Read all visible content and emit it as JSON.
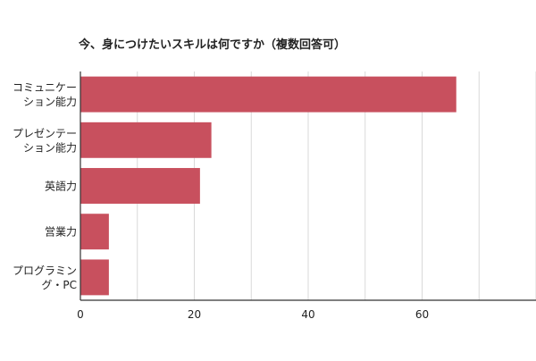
{
  "chart_data": {
    "type": "bar",
    "orientation": "horizontal",
    "title": "今、身につけたいスキルは何ですか（複数回答可）",
    "categories": [
      [
        "コミュニケー",
        "ション能力"
      ],
      [
        "プレゼンテー",
        "ション能力"
      ],
      [
        "英語力"
      ],
      [
        "営業力"
      ],
      [
        "プログラミン",
        "グ・PC"
      ]
    ],
    "values": [
      66,
      23,
      21,
      5,
      5
    ],
    "xlim": [
      0,
      80
    ],
    "xticks": [
      0,
      20,
      40,
      60
    ],
    "grid": true,
    "legend": "none",
    "bar_color": "#c8505e",
    "grid_color": "#d9d9d9",
    "axis_color": "#333333",
    "text_color": "#222222"
  }
}
